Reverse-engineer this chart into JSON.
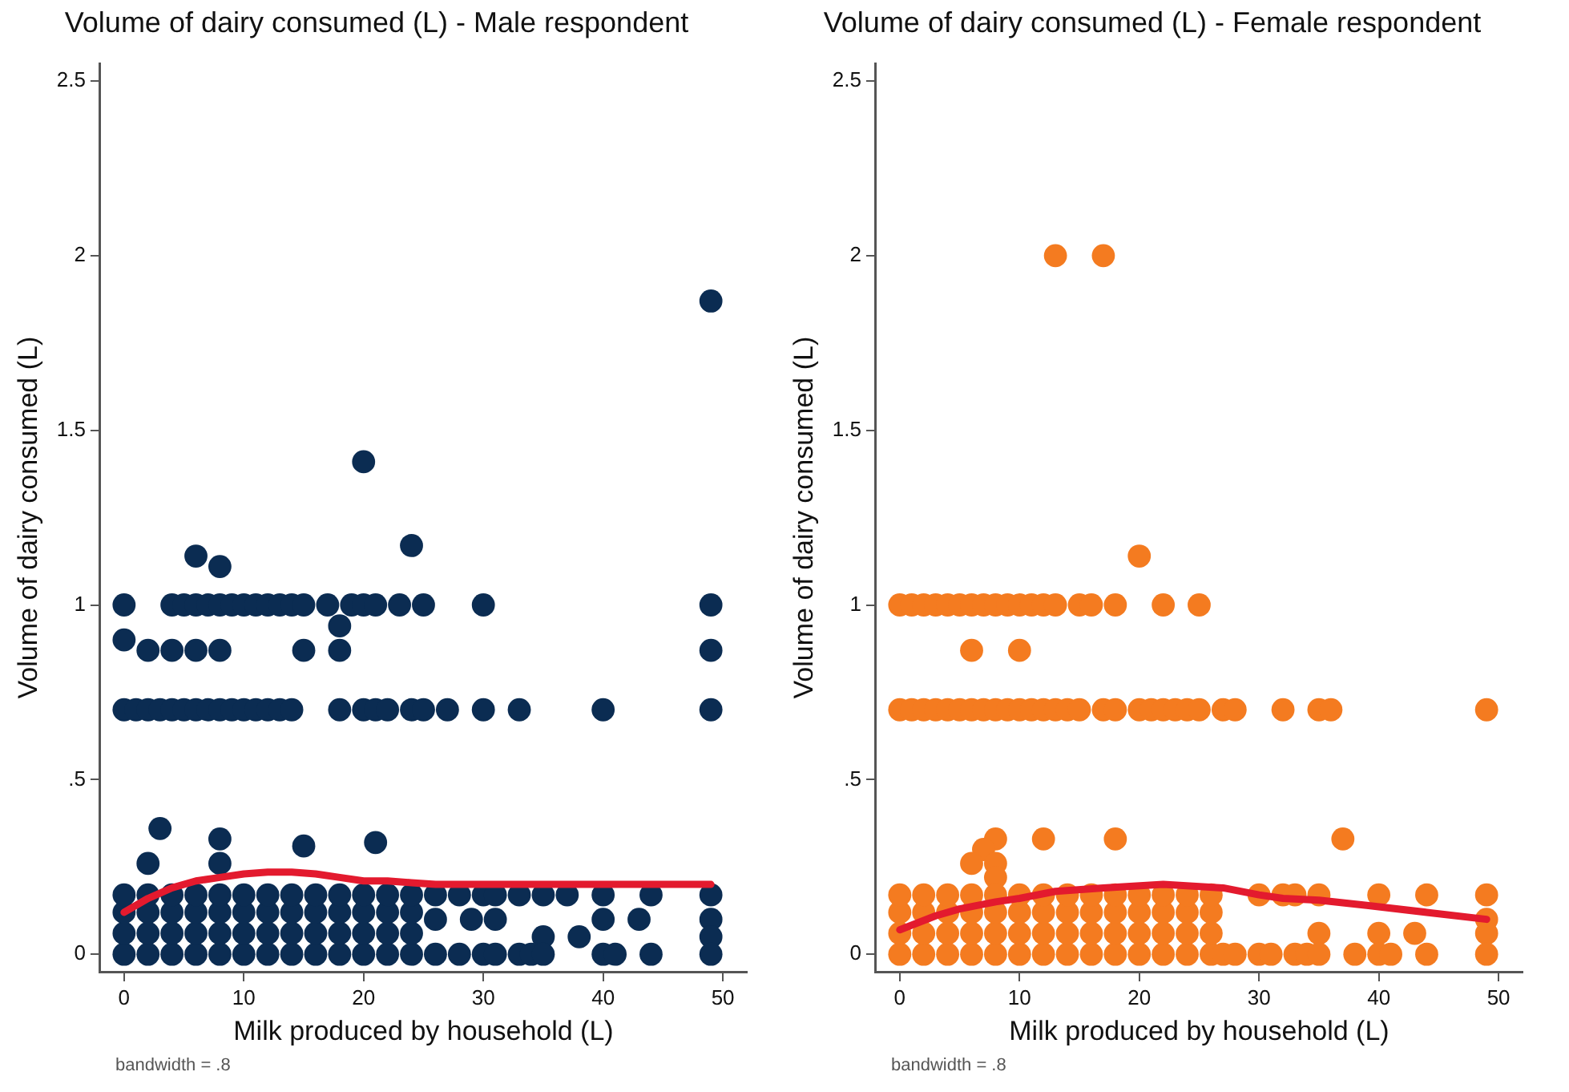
{
  "chart_data": [
    {
      "type": "scatter",
      "title": "Volume of dairy consumed (L) - Male respondent",
      "xlabel": "Milk produced by household (L)",
      "ylabel": "Volume of dairy consumed (L)",
      "annotations": [
        "bandwidth = .8"
      ],
      "xlim": [
        -2,
        52
      ],
      "ylim": [
        -0.05,
        2.55
      ],
      "xticks": [
        0,
        10,
        20,
        30,
        40,
        50
      ],
      "yticks": [
        0,
        {
          "value": 0.5,
          "label": ".5"
        },
        1,
        {
          "value": 1.5,
          "label": "1.5"
        },
        2,
        {
          "value": 2.5,
          "label": "2.5"
        }
      ],
      "grid": false,
      "legend": false,
      "marker": "circle",
      "series": [
        {
          "type": "scatter",
          "color": "#0b2c52",
          "x": [
            49,
            20,
            24,
            6,
            8,
            0,
            4,
            5,
            6,
            7,
            8,
            9,
            10,
            11,
            12,
            13,
            14,
            15,
            17,
            19,
            20,
            21,
            23,
            25,
            30,
            49,
            0,
            18,
            2,
            4,
            6,
            8,
            15,
            18,
            49,
            0,
            1,
            2,
            3,
            4,
            5,
            6,
            7,
            8,
            9,
            10,
            11,
            12,
            13,
            14,
            18,
            20,
            21,
            22,
            24,
            25,
            27,
            30,
            33,
            40,
            49,
            3,
            2,
            8,
            8,
            15,
            21,
            0,
            2,
            4,
            6,
            8,
            10,
            12,
            14,
            16,
            18,
            20,
            22,
            24,
            0,
            2,
            4,
            6,
            8,
            10,
            12,
            14,
            16,
            18,
            20,
            22,
            24,
            0,
            2,
            4,
            6,
            8,
            10,
            12,
            14,
            16,
            18,
            20,
            22,
            24,
            0,
            2,
            4,
            6,
            8,
            10,
            12,
            14,
            16,
            18,
            20,
            22,
            24,
            26,
            28,
            30,
            31,
            33,
            35,
            37,
            40,
            44,
            49,
            26,
            29,
            31,
            40,
            43,
            49,
            35,
            38,
            49,
            26,
            28,
            30,
            31,
            33,
            34,
            35,
            40,
            41,
            44,
            49
          ],
          "values": [
            1.87,
            1.41,
            1.17,
            1.14,
            1.11,
            1,
            1,
            1,
            1,
            1,
            1,
            1,
            1,
            1,
            1,
            1,
            1,
            1,
            1,
            1,
            1,
            1,
            1,
            1,
            1,
            1,
            0.9,
            0.94,
            0.87,
            0.87,
            0.87,
            0.87,
            0.87,
            0.87,
            0.87,
            0.7,
            0.7,
            0.7,
            0.7,
            0.7,
            0.7,
            0.7,
            0.7,
            0.7,
            0.7,
            0.7,
            0.7,
            0.7,
            0.7,
            0.7,
            0.7,
            0.7,
            0.7,
            0.7,
            0.7,
            0.7,
            0.7,
            0.7,
            0.7,
            0.7,
            0.7,
            0.36,
            0.26,
            0.33,
            0.26,
            0.31,
            0.32,
            0,
            0,
            0,
            0,
            0,
            0,
            0,
            0,
            0,
            0,
            0,
            0,
            0,
            0.06,
            0.06,
            0.06,
            0.06,
            0.06,
            0.06,
            0.06,
            0.06,
            0.06,
            0.06,
            0.06,
            0.06,
            0.06,
            0.12,
            0.12,
            0.12,
            0.12,
            0.12,
            0.12,
            0.12,
            0.12,
            0.12,
            0.12,
            0.12,
            0.12,
            0.12,
            0.17,
            0.17,
            0.17,
            0.17,
            0.17,
            0.17,
            0.17,
            0.17,
            0.17,
            0.17,
            0.17,
            0.17,
            0.17,
            0.17,
            0.17,
            0.17,
            0.17,
            0.17,
            0.17,
            0.17,
            0.17,
            0.17,
            0.17,
            0.1,
            0.1,
            0.1,
            0.1,
            0.1,
            0.1,
            0.05,
            0.05,
            0.05,
            0,
            0,
            0,
            0,
            0,
            0,
            0,
            0,
            0,
            0,
            0
          ]
        },
        {
          "type": "line",
          "color": "#e31a2e",
          "marker": "none",
          "x": [
            0,
            2,
            4,
            6,
            8,
            10,
            12,
            14,
            16,
            18,
            20,
            22,
            24,
            26,
            30,
            35,
            40,
            45,
            49
          ],
          "values": [
            0.12,
            0.16,
            0.19,
            0.21,
            0.22,
            0.23,
            0.235,
            0.235,
            0.23,
            0.22,
            0.21,
            0.21,
            0.205,
            0.2,
            0.2,
            0.2,
            0.2,
            0.2,
            0.2
          ]
        }
      ]
    },
    {
      "type": "scatter",
      "title": "Volume of dairy consumed (L) - Female respondent",
      "xlabel": "Milk produced by household (L)",
      "ylabel": "Volume of dairy consumed (L)",
      "annotations": [
        "bandwidth = .8"
      ],
      "xlim": [
        -2,
        52
      ],
      "ylim": [
        -0.05,
        2.55
      ],
      "xticks": [
        0,
        10,
        20,
        30,
        40,
        50
      ],
      "yticks": [
        0,
        {
          "value": 0.5,
          "label": ".5"
        },
        1,
        {
          "value": 1.5,
          "label": "1.5"
        },
        2,
        {
          "value": 2.5,
          "label": "2.5"
        }
      ],
      "grid": false,
      "legend": false,
      "marker": "circle",
      "series": [
        {
          "type": "scatter",
          "color": "#f47b20",
          "x": [
            13,
            17,
            20,
            0,
            1,
            2,
            3,
            4,
            5,
            6,
            7,
            8,
            9,
            10,
            11,
            12,
            13,
            15,
            16,
            18,
            22,
            25,
            6,
            10,
            0,
            1,
            2,
            3,
            4,
            5,
            6,
            7,
            8,
            9,
            10,
            11,
            12,
            13,
            14,
            15,
            17,
            18,
            20,
            21,
            22,
            23,
            24,
            25,
            27,
            28,
            32,
            35,
            36,
            49,
            8,
            12,
            18,
            37,
            7,
            6,
            8,
            8,
            0,
            2,
            4,
            6,
            8,
            10,
            12,
            14,
            16,
            18,
            20,
            22,
            24,
            26,
            0,
            2,
            4,
            6,
            8,
            10,
            12,
            14,
            16,
            18,
            20,
            22,
            24,
            26,
            0,
            2,
            4,
            6,
            8,
            10,
            12,
            14,
            16,
            18,
            20,
            22,
            24,
            26,
            0,
            2,
            4,
            6,
            8,
            10,
            12,
            14,
            16,
            18,
            20,
            22,
            24,
            26,
            30,
            32,
            33,
            35,
            40,
            44,
            49,
            49,
            35,
            40,
            43,
            49,
            27,
            28,
            30,
            31,
            33,
            34,
            35,
            38,
            40,
            41,
            44,
            49
          ],
          "values": [
            2,
            2,
            1.14,
            1,
            1,
            1,
            1,
            1,
            1,
            1,
            1,
            1,
            1,
            1,
            1,
            1,
            1,
            1,
            1,
            1,
            1,
            1,
            0.87,
            0.87,
            0.7,
            0.7,
            0.7,
            0.7,
            0.7,
            0.7,
            0.7,
            0.7,
            0.7,
            0.7,
            0.7,
            0.7,
            0.7,
            0.7,
            0.7,
            0.7,
            0.7,
            0.7,
            0.7,
            0.7,
            0.7,
            0.7,
            0.7,
            0.7,
            0.7,
            0.7,
            0.7,
            0.7,
            0.7,
            0.7,
            0.33,
            0.33,
            0.33,
            0.33,
            0.3,
            0.26,
            0.26,
            0.22,
            0,
            0,
            0,
            0,
            0,
            0,
            0,
            0,
            0,
            0,
            0,
            0,
            0,
            0,
            0.06,
            0.06,
            0.06,
            0.06,
            0.06,
            0.06,
            0.06,
            0.06,
            0.06,
            0.06,
            0.06,
            0.06,
            0.06,
            0.06,
            0.12,
            0.12,
            0.12,
            0.12,
            0.12,
            0.12,
            0.12,
            0.12,
            0.12,
            0.12,
            0.12,
            0.12,
            0.12,
            0.12,
            0.17,
            0.17,
            0.17,
            0.17,
            0.17,
            0.17,
            0.17,
            0.17,
            0.17,
            0.17,
            0.17,
            0.17,
            0.17,
            0.17,
            0.17,
            0.17,
            0.17,
            0.17,
            0.17,
            0.17,
            0.17,
            0.1,
            0.06,
            0.06,
            0.06,
            0.06,
            0,
            0,
            0,
            0,
            0,
            0,
            0,
            0,
            0,
            0,
            0,
            0
          ]
        },
        {
          "type": "line",
          "color": "#e31a2e",
          "marker": "none",
          "x": [
            0,
            3,
            5,
            8,
            10,
            13,
            17,
            22,
            27,
            30,
            32,
            35,
            39,
            44,
            49
          ],
          "values": [
            0.07,
            0.11,
            0.13,
            0.15,
            0.16,
            0.18,
            0.19,
            0.2,
            0.19,
            0.17,
            0.16,
            0.155,
            0.14,
            0.12,
            0.1
          ]
        }
      ]
    }
  ]
}
